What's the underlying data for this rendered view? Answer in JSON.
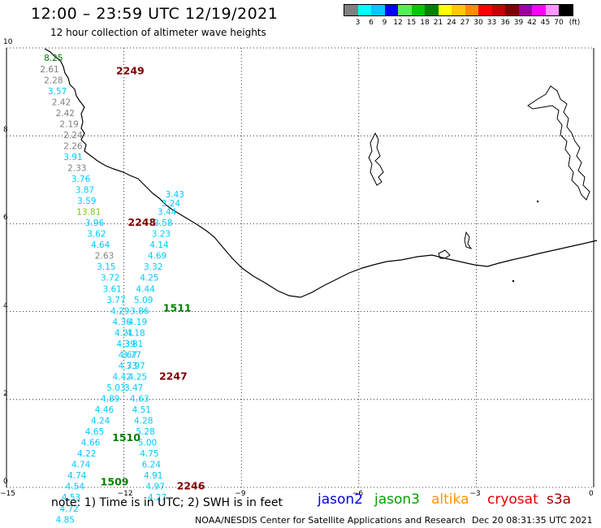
{
  "title": "12:00 – 23:59 UTC 12/19/2021",
  "subtitle": "12 hour collection of altimeter wave heights",
  "colorbar": {
    "unit": "(ft)",
    "levels": [
      {
        "label": "3",
        "color": "#808080"
      },
      {
        "label": "6",
        "color": "#00ffff"
      },
      {
        "label": "9",
        "color": "#00c8ff"
      },
      {
        "label": "12",
        "color": "#0000ff"
      },
      {
        "label": "15",
        "color": "#55ee55"
      },
      {
        "label": "18",
        "color": "#00c800"
      },
      {
        "label": "21",
        "color": "#008000"
      },
      {
        "label": "24",
        "color": "#ffff00"
      },
      {
        "label": "27",
        "color": "#ffc800"
      },
      {
        "label": "30",
        "color": "#ff8c00"
      },
      {
        "label": "33",
        "color": "#ff0000"
      },
      {
        "label": "36",
        "color": "#c80000"
      },
      {
        "label": "39",
        "color": "#800000"
      },
      {
        "label": "42",
        "color": "#a000a0"
      },
      {
        "label": "45",
        "color": "#ff00ff"
      },
      {
        "label": "70",
        "color": "#ff96ff"
      },
      {
        "label": "",
        "color": "#000000"
      }
    ]
  },
  "axes": {
    "lon_labels": [
      "−15",
      "−12",
      "−9",
      "−6",
      "−3",
      "0"
    ],
    "lat_labels": [
      "0",
      "2",
      "4",
      "6",
      "8",
      "10"
    ],
    "lon_range": [
      -15,
      0
    ],
    "lat_range": [
      0,
      10
    ]
  },
  "passes": [
    {
      "id": "2249",
      "lon": -12.2,
      "lat": 9.4,
      "color": "#800000"
    },
    {
      "id": "2248",
      "lon": -11.9,
      "lat": 5.95,
      "color": "#800000"
    },
    {
      "id": "1511",
      "lon": -11.0,
      "lat": 4.0,
      "color": "#008000"
    },
    {
      "id": "2247",
      "lon": -11.1,
      "lat": 2.45,
      "color": "#800000"
    },
    {
      "id": "1510",
      "lon": -12.3,
      "lat": 1.05,
      "color": "#008000"
    },
    {
      "id": "1509",
      "lon": -12.6,
      "lat": 0.05,
      "color": "#008000"
    },
    {
      "id": "2246",
      "lon": -10.65,
      "lat": -0.05,
      "color": "#800000"
    }
  ],
  "wave_heights": [
    {
      "v": "8.25",
      "lon": -13.8,
      "lat": 9.7,
      "color": "#008000"
    },
    {
      "v": "2.61",
      "lon": -13.9,
      "lat": 9.45,
      "color": "#808080"
    },
    {
      "v": "2.28",
      "lon": -13.8,
      "lat": 9.2,
      "color": "#808080"
    },
    {
      "v": "3.57",
      "lon": -13.7,
      "lat": 8.95,
      "color": "#00c8ff"
    },
    {
      "v": "2.42",
      "lon": -13.6,
      "lat": 8.7,
      "color": "#808080"
    },
    {
      "v": "2.42",
      "lon": -13.5,
      "lat": 8.45,
      "color": "#808080"
    },
    {
      "v": "2.19",
      "lon": -13.4,
      "lat": 8.2,
      "color": "#808080"
    },
    {
      "v": "2.24",
      "lon": -13.3,
      "lat": 7.95,
      "color": "#808080"
    },
    {
      "v": "2.26",
      "lon": -13.3,
      "lat": 7.7,
      "color": "#808080"
    },
    {
      "v": "3.91",
      "lon": -13.3,
      "lat": 7.45,
      "color": "#00c8ff"
    },
    {
      "v": "2.33",
      "lon": -13.2,
      "lat": 7.2,
      "color": "#808080"
    },
    {
      "v": "3.76",
      "lon": -13.1,
      "lat": 6.95,
      "color": "#00c8ff"
    },
    {
      "v": "3.87",
      "lon": -13.0,
      "lat": 6.7,
      "color": "#00c8ff"
    },
    {
      "v": "3.59",
      "lon": -12.95,
      "lat": 6.45,
      "color": "#00c8ff"
    },
    {
      "v": "13.81",
      "lon": -12.9,
      "lat": 6.2,
      "color": "#80c800"
    },
    {
      "v": "3.96",
      "lon": -12.75,
      "lat": 5.95,
      "color": "#00c8ff"
    },
    {
      "v": "3.62",
      "lon": -12.7,
      "lat": 5.7,
      "color": "#00c8ff"
    },
    {
      "v": "4.64",
      "lon": -12.6,
      "lat": 5.45,
      "color": "#00c8ff"
    },
    {
      "v": "2.63",
      "lon": -12.5,
      "lat": 5.2,
      "color": "#808080"
    },
    {
      "v": "3.15",
      "lon": -12.45,
      "lat": 4.95,
      "color": "#00c8ff"
    },
    {
      "v": "3.72",
      "lon": -12.35,
      "lat": 4.7,
      "color": "#00c8ff"
    },
    {
      "v": "3.61",
      "lon": -12.3,
      "lat": 4.45,
      "color": "#00c8ff"
    },
    {
      "v": "3.77",
      "lon": -12.2,
      "lat": 4.2,
      "color": "#00c8ff"
    },
    {
      "v": "4.29",
      "lon": -12.1,
      "lat": 3.95,
      "color": "#00c8ff"
    },
    {
      "v": "4.36",
      "lon": -12.05,
      "lat": 3.7,
      "color": "#00c8ff"
    },
    {
      "v": "4.21",
      "lon": -12.0,
      "lat": 3.45,
      "color": "#00c8ff"
    },
    {
      "v": "4.39",
      "lon": -11.95,
      "lat": 3.2,
      "color": "#00c8ff"
    },
    {
      "v": "4.67",
      "lon": -11.9,
      "lat": 2.95,
      "color": "#00c8ff"
    },
    {
      "v": "4.73",
      "lon": -11.9,
      "lat": 2.7,
      "color": "#00c8ff"
    },
    {
      "v": "4.42",
      "lon": -12.05,
      "lat": 2.45,
      "color": "#00c8ff"
    },
    {
      "v": "5.03",
      "lon": -12.2,
      "lat": 2.2,
      "color": "#00c8ff"
    },
    {
      "v": "4.89",
      "lon": -12.35,
      "lat": 1.95,
      "color": "#00c8ff"
    },
    {
      "v": "4.46",
      "lon": -12.5,
      "lat": 1.7,
      "color": "#00c8ff"
    },
    {
      "v": "4.24",
      "lon": -12.6,
      "lat": 1.45,
      "color": "#00c8ff"
    },
    {
      "v": "4.65",
      "lon": -12.75,
      "lat": 1.2,
      "color": "#00c8ff"
    },
    {
      "v": "4.66",
      "lon": -12.85,
      "lat": 0.95,
      "color": "#00c8ff"
    },
    {
      "v": "4.22",
      "lon": -12.95,
      "lat": 0.7,
      "color": "#00c8ff"
    },
    {
      "v": "4.74",
      "lon": -13.1,
      "lat": 0.45,
      "color": "#00c8ff"
    },
    {
      "v": "4.74",
      "lon": -13.2,
      "lat": 0.2,
      "color": "#00c8ff"
    },
    {
      "v": "4.54",
      "lon": -13.25,
      "lat": -0.05,
      "color": "#00c8ff"
    },
    {
      "v": "4.53",
      "lon": -13.35,
      "lat": -0.3,
      "color": "#00c8ff"
    },
    {
      "v": "4.72",
      "lon": -13.4,
      "lat": -0.55,
      "color": "#00c8ff"
    },
    {
      "v": "4.85",
      "lon": -13.5,
      "lat": -0.8,
      "color": "#00c8ff"
    },
    {
      "v": "3.43",
      "lon": -10.7,
      "lat": 6.6,
      "color": "#00c8ff"
    },
    {
      "v": "3.24",
      "lon": -10.8,
      "lat": 6.4,
      "color": "#00c8ff"
    },
    {
      "v": "3.44",
      "lon": -10.9,
      "lat": 6.2,
      "color": "#00c8ff"
    },
    {
      "v": "3.58",
      "lon": -11.0,
      "lat": 5.95,
      "color": "#00c8ff"
    },
    {
      "v": "3.23",
      "lon": -11.05,
      "lat": 5.7,
      "color": "#00c8ff"
    },
    {
      "v": "4.14",
      "lon": -11.1,
      "lat": 5.45,
      "color": "#00c8ff"
    },
    {
      "v": "4.69",
      "lon": -11.15,
      "lat": 5.2,
      "color": "#00c8ff"
    },
    {
      "v": "3.32",
      "lon": -11.25,
      "lat": 4.95,
      "color": "#00c8ff"
    },
    {
      "v": "4.25",
      "lon": -11.35,
      "lat": 4.7,
      "color": "#00c8ff"
    },
    {
      "v": "4.44",
      "lon": -11.45,
      "lat": 4.45,
      "color": "#00c8ff"
    },
    {
      "v": "5.09",
      "lon": -11.5,
      "lat": 4.2,
      "color": "#00c8ff"
    },
    {
      "v": "3.86",
      "lon": -11.6,
      "lat": 3.95,
      "color": "#00c8ff"
    },
    {
      "v": "4.19",
      "lon": -11.65,
      "lat": 3.7,
      "color": "#00c8ff"
    },
    {
      "v": "4.18",
      "lon": -11.7,
      "lat": 3.45,
      "color": "#00c8ff"
    },
    {
      "v": "3.81",
      "lon": -11.75,
      "lat": 3.2,
      "color": "#00c8ff"
    },
    {
      "v": "3.77",
      "lon": -11.8,
      "lat": 2.95,
      "color": "#00c8ff"
    },
    {
      "v": "3.97",
      "lon": -11.7,
      "lat": 2.7,
      "color": "#00c8ff"
    },
    {
      "v": "4.25",
      "lon": -11.65,
      "lat": 2.45,
      "color": "#00c8ff"
    },
    {
      "v": "3.47",
      "lon": -11.75,
      "lat": 2.2,
      "color": "#00c8ff"
    },
    {
      "v": "4.63",
      "lon": -11.6,
      "lat": 1.95,
      "color": "#00c8ff"
    },
    {
      "v": "4.51",
      "lon": -11.55,
      "lat": 1.7,
      "color": "#00c8ff"
    },
    {
      "v": "4.28",
      "lon": -11.5,
      "lat": 1.45,
      "color": "#00c8ff"
    },
    {
      "v": "5.28",
      "lon": -11.45,
      "lat": 1.2,
      "color": "#00c8ff"
    },
    {
      "v": "5.00",
      "lon": -11.4,
      "lat": 0.95,
      "color": "#00c8ff"
    },
    {
      "v": "4.75",
      "lon": -11.35,
      "lat": 0.7,
      "color": "#00c8ff"
    },
    {
      "v": "6.24",
      "lon": -11.3,
      "lat": 0.45,
      "color": "#00c8ff"
    },
    {
      "v": "4.91",
      "lon": -11.25,
      "lat": 0.2,
      "color": "#00c8ff"
    },
    {
      "v": "4.97",
      "lon": -11.2,
      "lat": -0.05,
      "color": "#00c8ff"
    },
    {
      "v": "4.27",
      "lon": -11.15,
      "lat": -0.3,
      "color": "#00c8ff"
    }
  ],
  "note": "note: 1) Time is in UTC; 2) SWH is in feet",
  "missions": [
    {
      "name": "jason2",
      "color": "#0000e6"
    },
    {
      "name": "jason3",
      "color": "#00a000"
    },
    {
      "name": "altika",
      "color": "#ff9600"
    },
    {
      "name": "cryosat",
      "color": "#e60000"
    },
    {
      "name": "s3a",
      "color": "#a00000"
    }
  ],
  "credit": "NOAA/NESDIS Center for Satellite Applications and Research",
  "timestamp": "Dec 20 08:31:35 UTC 2021"
}
